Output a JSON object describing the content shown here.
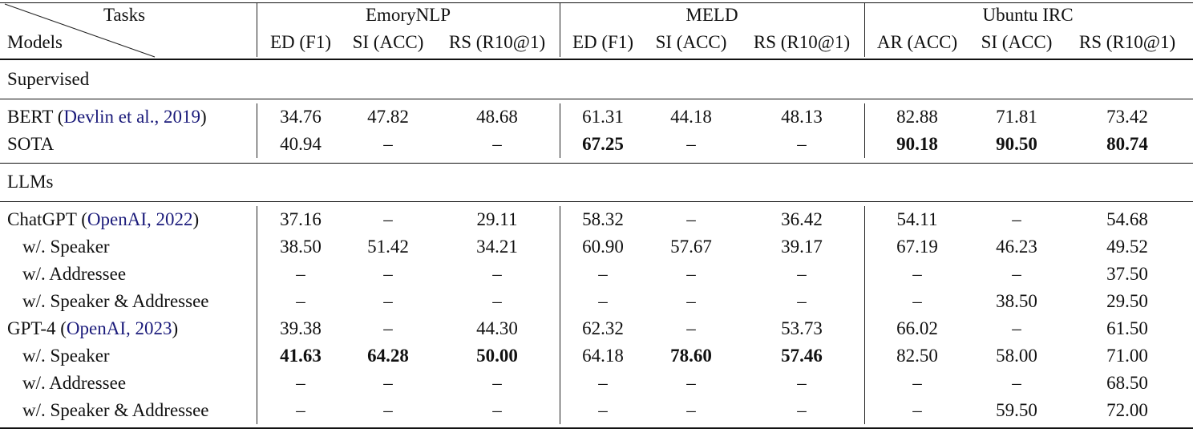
{
  "table": {
    "corner": {
      "top": "Tasks",
      "bottom": "Models"
    },
    "datasets": [
      {
        "name": "EmoryNLP",
        "metrics": [
          "ED (F1)",
          "SI (ACC)",
          "RS (R10@1)"
        ]
      },
      {
        "name": "MELD",
        "metrics": [
          "ED (F1)",
          "SI (ACC)",
          "RS (R10@1)"
        ]
      },
      {
        "name": "Ubuntu IRC",
        "metrics": [
          "AR (ACC)",
          "SI (ACC)",
          "RS (R10@1)"
        ]
      }
    ],
    "sections": [
      {
        "title": "Supervised",
        "rows": [
          {
            "model": "BERT",
            "cite_open": " (",
            "cite": "Devlin et al., 2019",
            "cite_close": ")",
            "indent": false,
            "values": [
              "34.76",
              "47.82",
              "48.68",
              "61.31",
              "44.18",
              "48.13",
              "82.88",
              "71.81",
              "73.42"
            ],
            "bold": [
              false,
              false,
              false,
              false,
              false,
              false,
              false,
              false,
              false
            ]
          },
          {
            "model": "SOTA",
            "indent": false,
            "values": [
              "40.94",
              "–",
              "–",
              "67.25",
              "–",
              "–",
              "90.18",
              "90.50",
              "80.74"
            ],
            "bold": [
              false,
              false,
              false,
              true,
              false,
              false,
              true,
              true,
              true
            ]
          }
        ]
      },
      {
        "title": "LLMs",
        "rows": [
          {
            "model": "ChatGPT",
            "cite_open": " (",
            "cite": "OpenAI, 2022",
            "cite_close": ")",
            "indent": false,
            "values": [
              "37.16",
              "–",
              "29.11",
              "58.32",
              "–",
              "36.42",
              "54.11",
              "–",
              "54.68"
            ],
            "bold": [
              false,
              false,
              false,
              false,
              false,
              false,
              false,
              false,
              false
            ]
          },
          {
            "model": "w/. Speaker",
            "indent": true,
            "values": [
              "38.50",
              "51.42",
              "34.21",
              "60.90",
              "57.67",
              "39.17",
              "67.19",
              "46.23",
              "49.52"
            ],
            "bold": [
              false,
              false,
              false,
              false,
              false,
              false,
              false,
              false,
              false
            ]
          },
          {
            "model": "w/. Addressee",
            "indent": true,
            "values": [
              "–",
              "–",
              "–",
              "–",
              "–",
              "–",
              "–",
              "–",
              "37.50"
            ],
            "bold": [
              false,
              false,
              false,
              false,
              false,
              false,
              false,
              false,
              false
            ]
          },
          {
            "model": "w/. Speaker & Addressee",
            "indent": true,
            "values": [
              "–",
              "–",
              "–",
              "–",
              "–",
              "–",
              "–",
              "38.50",
              "29.50"
            ],
            "bold": [
              false,
              false,
              false,
              false,
              false,
              false,
              false,
              false,
              false
            ]
          },
          {
            "model": "GPT-4",
            "cite_open": " (",
            "cite": "OpenAI, 2023",
            "cite_close": ")",
            "indent": false,
            "values": [
              "39.38",
              "–",
              "44.30",
              "62.32",
              "–",
              "53.73",
              "66.02",
              "–",
              "61.50"
            ],
            "bold": [
              false,
              false,
              false,
              false,
              false,
              false,
              false,
              false,
              false
            ]
          },
          {
            "model": "w/. Speaker",
            "indent": true,
            "values": [
              "41.63",
              "64.28",
              "50.00",
              "64.18",
              "78.60",
              "57.46",
              "82.50",
              "58.00",
              "71.00"
            ],
            "bold": [
              true,
              true,
              true,
              false,
              true,
              true,
              false,
              false,
              false
            ]
          },
          {
            "model": "w/. Addressee",
            "indent": true,
            "values": [
              "–",
              "–",
              "–",
              "–",
              "–",
              "–",
              "–",
              "–",
              "68.50"
            ],
            "bold": [
              false,
              false,
              false,
              false,
              false,
              false,
              false,
              false,
              false
            ]
          },
          {
            "model": "w/. Speaker & Addressee",
            "indent": true,
            "values": [
              "–",
              "–",
              "–",
              "–",
              "–",
              "–",
              "–",
              "59.50",
              "72.00"
            ],
            "bold": [
              false,
              false,
              false,
              false,
              false,
              false,
              false,
              false,
              false
            ]
          }
        ]
      }
    ]
  }
}
